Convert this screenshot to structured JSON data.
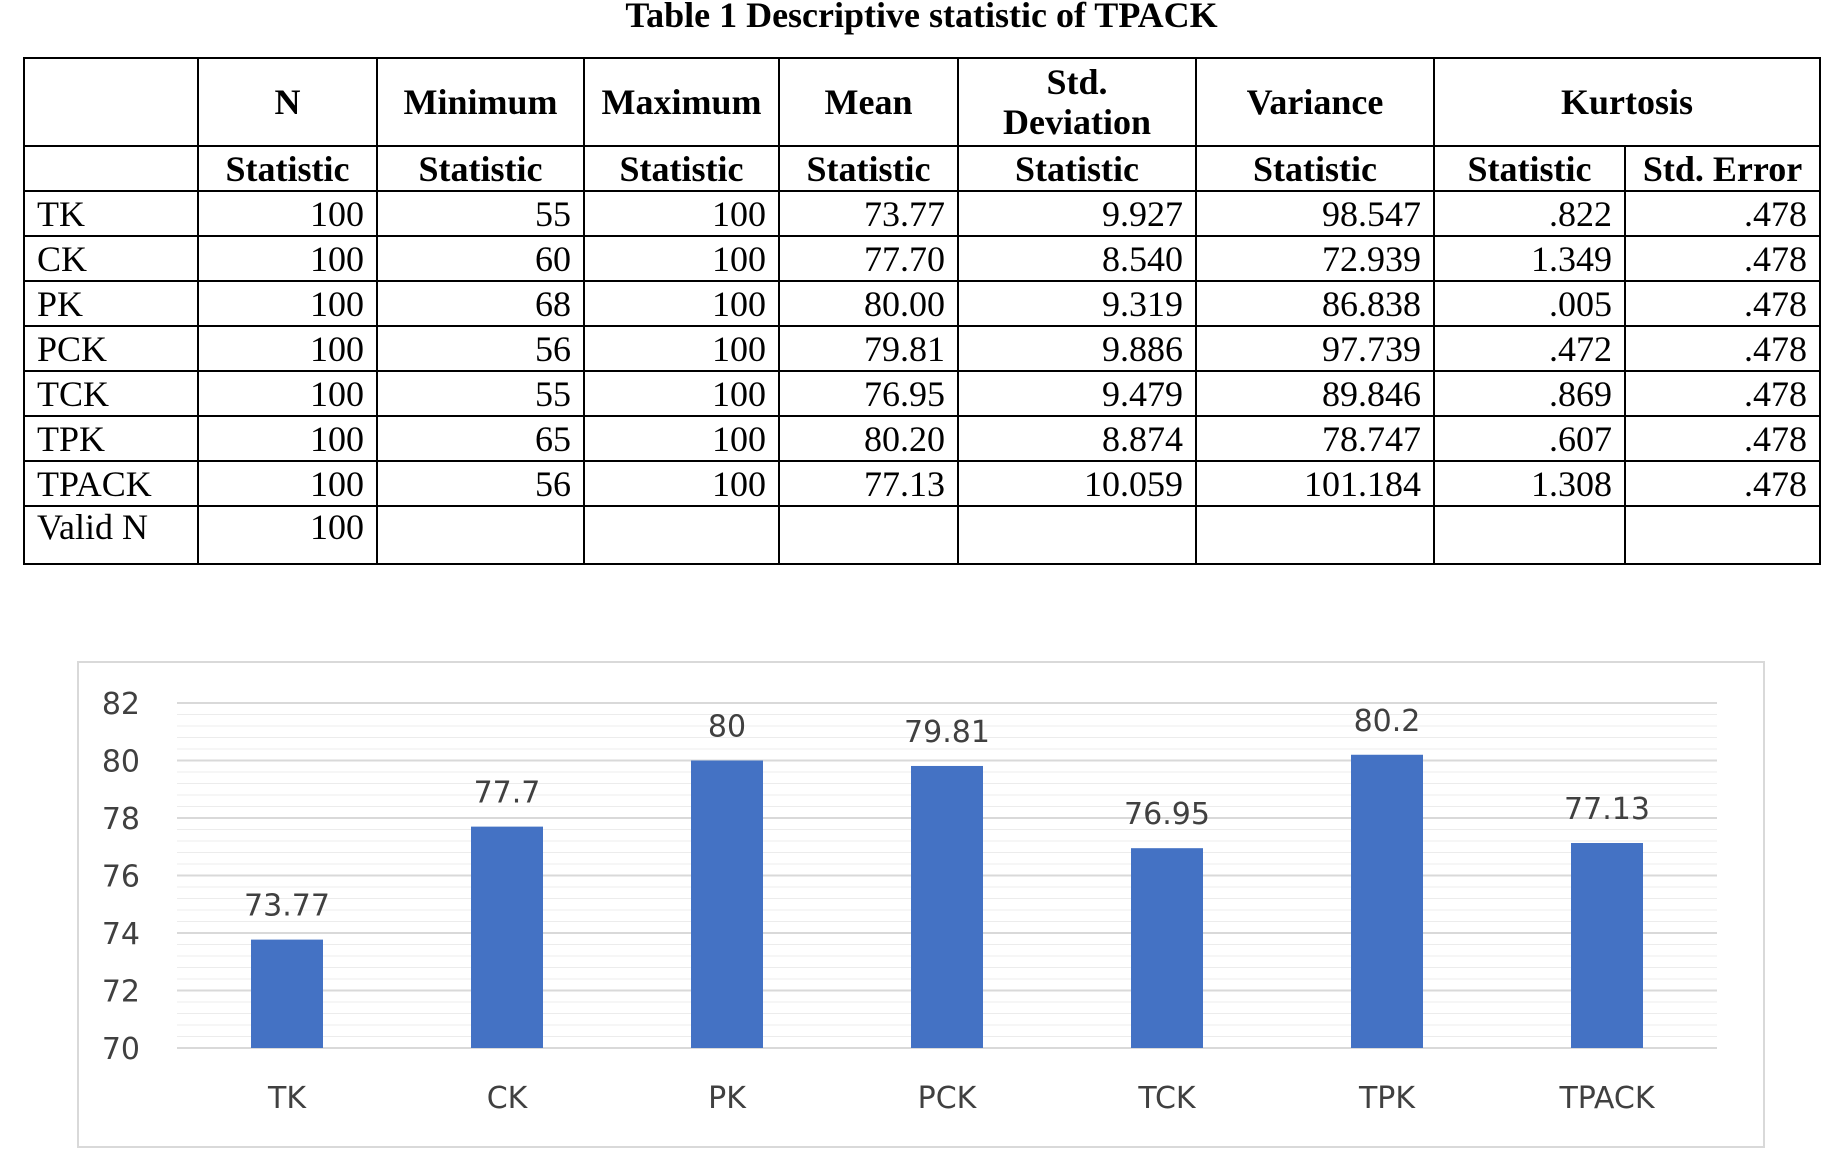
{
  "caption": "Table 1 Descriptive statistic of TPACK",
  "table": {
    "headers": [
      "N",
      "Minimum",
      "Maximum",
      "Mean",
      "Std. Deviation",
      "Variance",
      "Kurtosis"
    ],
    "subheaders": [
      "Statistic",
      "Statistic",
      "Statistic",
      "Statistic",
      "Statistic",
      "Statistic",
      "Statistic",
      "Std. Error"
    ],
    "rows": [
      {
        "label": "TK",
        "cells": [
          "100",
          "55",
          "100",
          "73.77",
          "9.927",
          "98.547",
          ".822",
          ".478"
        ]
      },
      {
        "label": "CK",
        "cells": [
          "100",
          "60",
          "100",
          "77.70",
          "8.540",
          "72.939",
          "1.349",
          ".478"
        ]
      },
      {
        "label": "PK",
        "cells": [
          "100",
          "68",
          "100",
          "80.00",
          "9.319",
          "86.838",
          ".005",
          ".478"
        ]
      },
      {
        "label": "PCK",
        "cells": [
          "100",
          "56",
          "100",
          "79.81",
          "9.886",
          "97.739",
          ".472",
          ".478"
        ]
      },
      {
        "label": "TCK",
        "cells": [
          "100",
          "55",
          "100",
          "76.95",
          "9.479",
          "89.846",
          ".869",
          ".478"
        ]
      },
      {
        "label": "TPK",
        "cells": [
          "100",
          "65",
          "100",
          "80.20",
          "8.874",
          "78.747",
          ".607",
          ".478"
        ]
      },
      {
        "label": "TPACK",
        "cells": [
          "100",
          "56",
          "100",
          "77.13",
          "10.059",
          "101.184",
          "1.308",
          ".478"
        ]
      },
      {
        "label": "Valid N",
        "cells": [
          "100",
          "",
          "",
          "",
          "",
          "",
          "",
          ""
        ]
      }
    ]
  },
  "chart_data": {
    "type": "bar",
    "categories": [
      "TK",
      "CK",
      "PK",
      "PCK",
      "TCK",
      "TPK",
      "TPACK"
    ],
    "values": [
      73.77,
      77.7,
      80,
      79.81,
      76.95,
      80.2,
      77.13
    ],
    "data_labels": [
      "73.77",
      "77.7",
      "80",
      "79.81",
      "76.95",
      "80.2",
      "77.13"
    ],
    "title": "",
    "xlabel": "",
    "ylabel": "",
    "ylim": [
      70,
      82
    ],
    "yticks": [
      70,
      72,
      74,
      76,
      78,
      80,
      82
    ],
    "grid": true,
    "bar_color": "#4472c4"
  }
}
